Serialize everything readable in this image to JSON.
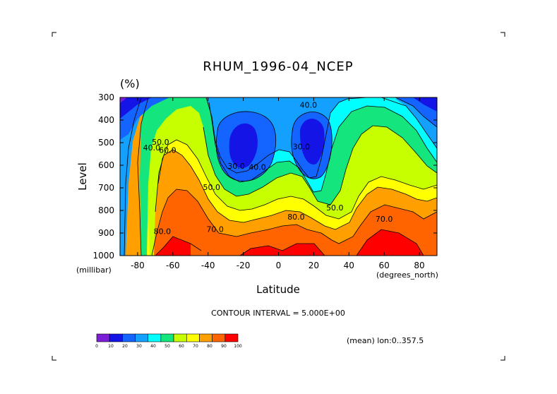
{
  "chart_data": {
    "type": "contour",
    "title": "RHUM_1996-04_NCEP",
    "units_label": "(%)",
    "xlabel": "Latitude",
    "ylabel": "Level",
    "x_unit_label": "(degrees_north)",
    "y_unit_label": "(millibar)",
    "xlim": [
      -90,
      90
    ],
    "ylim": [
      1000,
      300
    ],
    "x_ticks": [
      -80,
      -60,
      -40,
      -20,
      0,
      20,
      40,
      60,
      80
    ],
    "y_ticks": [
      300,
      400,
      500,
      600,
      700,
      800,
      900,
      1000
    ],
    "contour_interval_text": "CONTOUR INTERVAL = 5.000E+00",
    "mean_text": "(mean) lon:0..357.5",
    "contour_labels": [
      {
        "text": "40.0",
        "x": -72,
        "y": 535
      },
      {
        "text": "50.0",
        "x": -67,
        "y": 510
      },
      {
        "text": "60.0",
        "x": -63,
        "y": 545
      },
      {
        "text": "80.0",
        "x": -66,
        "y": 905
      },
      {
        "text": "70.0",
        "x": -36,
        "y": 895
      },
      {
        "text": "30.0",
        "x": -24,
        "y": 615
      },
      {
        "text": "40.0",
        "x": -12,
        "y": 620
      },
      {
        "text": "50.0",
        "x": -38,
        "y": 710
      },
      {
        "text": "40.0",
        "x": 17,
        "y": 345
      },
      {
        "text": "30.0",
        "x": 13,
        "y": 530
      },
      {
        "text": "80.0",
        "x": 10,
        "y": 840
      },
      {
        "text": "50.0",
        "x": 32,
        "y": 800
      },
      {
        "text": "70.0",
        "x": 60,
        "y": 850
      }
    ],
    "colorbar": {
      "labels": [
        "0",
        "10",
        "20",
        "30",
        "40",
        "50",
        "60",
        "70",
        "80",
        "90",
        "100"
      ],
      "colors": [
        "#7a1fd6",
        "#1414e6",
        "#1464ff",
        "#14a0ff",
        "#00ffff",
        "#14e67d",
        "#c8ff00",
        "#ffff00",
        "#ffa000",
        "#ff6400",
        "#ff0000"
      ]
    }
  }
}
